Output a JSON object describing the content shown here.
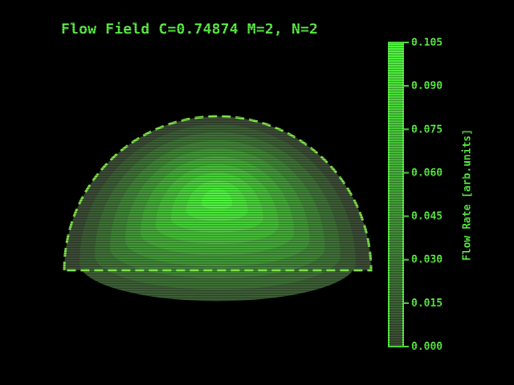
{
  "chart_data": {
    "type": "heatmap",
    "title": "Flow Field C=0.74874 M=2, N=2",
    "domain_shape": "half-disk",
    "colorbar": {
      "label": "Flow Rate [arb.units]",
      "min": 0.0,
      "max": 0.105,
      "ticks": [
        "0.105",
        "0.090",
        "0.075",
        "0.060",
        "0.045",
        "0.030",
        "0.015",
        "0.000"
      ],
      "tick_values": [
        0.105,
        0.09,
        0.075,
        0.06,
        0.045,
        0.03,
        0.015,
        0.0
      ],
      "placement": "right"
    },
    "field_peak": 0.105,
    "colors": {
      "background": "#000000",
      "low": "#3a4a34",
      "high": "#4cf53c",
      "accent": "#5cf545"
    }
  }
}
